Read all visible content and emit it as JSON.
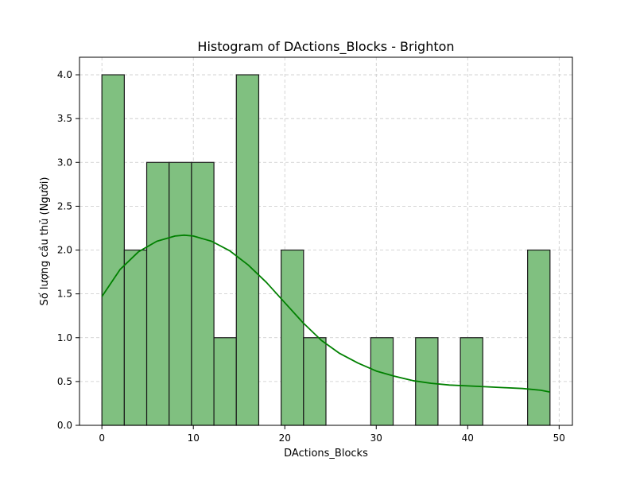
{
  "chart_data": {
    "type": "bar",
    "title": "Histogram of DActions_Blocks - Brighton",
    "xlabel": "DActions_Blocks",
    "ylabel": "Số lượng cầu thủ (Người)",
    "xlim": [
      -2.45,
      51.45
    ],
    "ylim": [
      0,
      4.2
    ],
    "x_ticks": [
      0,
      10,
      20,
      30,
      40,
      50
    ],
    "y_ticks": [
      0.0,
      0.5,
      1.0,
      1.5,
      2.0,
      2.5,
      3.0,
      3.5,
      4.0
    ],
    "grid": true,
    "bin_edges": [
      0,
      2.45,
      4.9,
      7.35,
      9.8,
      12.25,
      14.7,
      17.15,
      19.6,
      22.05,
      24.5,
      26.95,
      29.4,
      31.85,
      34.3,
      36.75,
      39.2,
      41.65,
      44.1,
      46.55,
      49
    ],
    "counts": [
      4,
      2,
      3,
      3,
      3,
      1,
      4,
      0,
      2,
      1,
      0,
      0,
      1,
      0,
      1,
      0,
      1,
      0,
      0,
      2
    ],
    "bar_color": "#80c080",
    "kde": {
      "color": "#008000",
      "x": [
        0,
        2,
        4,
        6,
        8,
        9,
        10,
        12,
        14,
        16,
        18,
        20,
        22,
        24,
        26,
        28,
        30,
        32,
        34,
        36,
        38,
        40,
        42,
        44,
        46,
        48,
        49
      ],
      "y": [
        1.47,
        1.78,
        1.98,
        2.1,
        2.16,
        2.17,
        2.16,
        2.1,
        1.99,
        1.83,
        1.63,
        1.4,
        1.17,
        0.97,
        0.82,
        0.71,
        0.62,
        0.56,
        0.51,
        0.48,
        0.46,
        0.45,
        0.44,
        0.43,
        0.42,
        0.4,
        0.38
      ]
    }
  }
}
